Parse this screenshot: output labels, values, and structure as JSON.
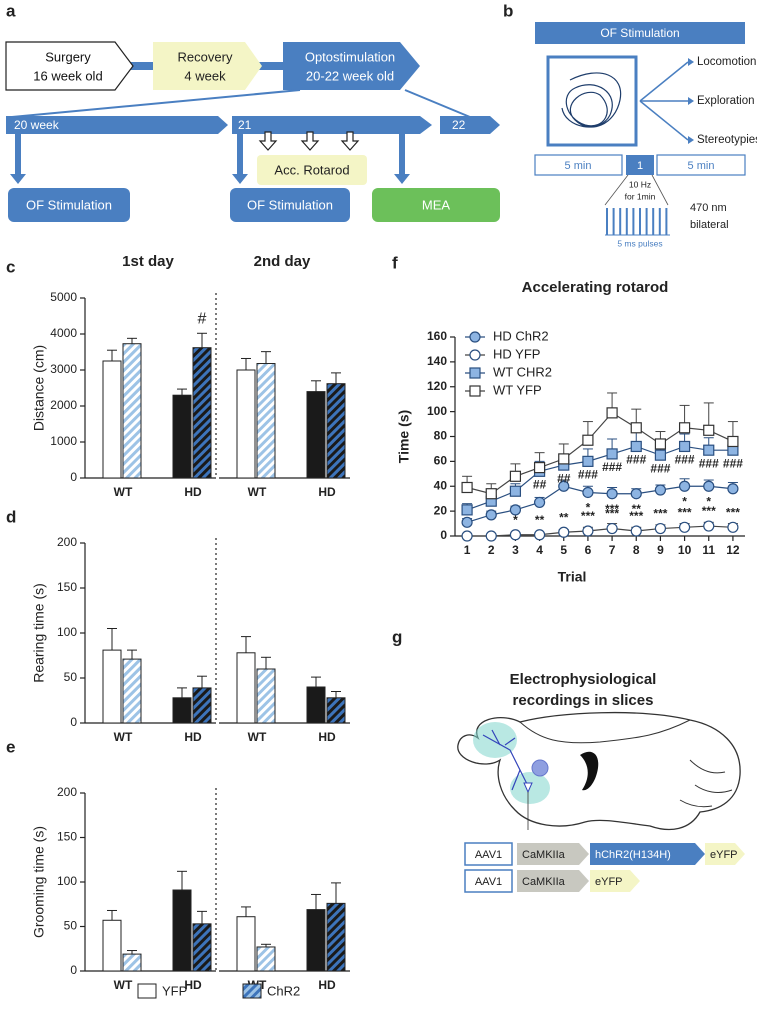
{
  "panel_labels": [
    "a",
    "b",
    "c",
    "d",
    "e",
    "f",
    "g"
  ],
  "timeline": {
    "steps": [
      [
        "Surgery",
        "16 week old"
      ],
      [
        "Recovery",
        "4 week"
      ],
      [
        "Optostimulation",
        "20-22 week old"
      ]
    ],
    "weeks": [
      "20 week",
      "21",
      "22"
    ],
    "events": [
      "OF Stimulation",
      "Acc. Rotarod",
      "OF Stimulation",
      "MEA"
    ]
  },
  "protocol": {
    "title": "OF Stimulation",
    "outcomes": [
      "Locomotion",
      "Exploration",
      "Stereotypies"
    ],
    "phases": [
      "5 min",
      "1",
      "5 min"
    ],
    "frequency": [
      "10 Hz",
      "for 1min"
    ],
    "pulses": "5 ms pulses",
    "light": [
      "470 nm",
      "bilateral"
    ]
  },
  "legend": [
    "YFP",
    "ChR2"
  ],
  "chart_data": [
    {
      "type": "bar",
      "ylabel": "Distance (cm)",
      "ylim": [
        0,
        5000
      ],
      "yticks": [
        0,
        1000,
        2000,
        3000,
        4000,
        5000
      ],
      "facets": [
        {
          "title": "1st day",
          "categories": [
            "WT",
            "HD"
          ],
          "series": [
            {
              "colors": [
                "#ffffff",
                "#1a1a1a"
              ],
              "values": [
                3250,
                2300
              ],
              "errors": [
                300,
                170
              ]
            },
            {
              "colors": [
                "#9dc3e6",
                "#3d74bb"
              ],
              "hatch_background": [
                "#ffffff",
                "#1a1a1a"
              ],
              "values": [
                3730,
                3620
              ],
              "errors": [
                150,
                400
              ],
              "annotations": [
                null,
                "#"
              ]
            }
          ]
        },
        {
          "title": "2nd day",
          "categories": [
            "WT",
            "HD"
          ],
          "series": [
            {
              "colors": [
                "#ffffff",
                "#1a1a1a"
              ],
              "values": [
                3000,
                2400
              ],
              "errors": [
                320,
                300
              ]
            },
            {
              "colors": [
                "#9dc3e6",
                "#3d74bb"
              ],
              "hatch_background": [
                "#ffffff",
                "#1a1a1a"
              ],
              "values": [
                3180,
                2620
              ],
              "errors": [
                330,
                300
              ]
            }
          ]
        }
      ]
    },
    {
      "type": "bar",
      "ylabel": "Rearing time (s)",
      "ylim": [
        0,
        200
      ],
      "yticks": [
        0,
        50,
        100,
        150,
        200
      ],
      "facets": [
        {
          "categories": [
            "WT",
            "HD"
          ],
          "series": [
            {
              "colors": [
                "#ffffff",
                "#1a1a1a"
              ],
              "values": [
                81,
                28
              ],
              "errors": [
                24,
                11
              ]
            },
            {
              "colors": [
                "#9dc3e6",
                "#3d74bb"
              ],
              "hatch_background": [
                "#ffffff",
                "#1a1a1a"
              ],
              "values": [
                71,
                39
              ],
              "errors": [
                10,
                13
              ]
            }
          ]
        },
        {
          "categories": [
            "WT",
            "HD"
          ],
          "series": [
            {
              "colors": [
                "#ffffff",
                "#1a1a1a"
              ],
              "values": [
                78,
                40
              ],
              "errors": [
                18,
                11
              ]
            },
            {
              "colors": [
                "#9dc3e6",
                "#3d74bb"
              ],
              "hatch_background": [
                "#ffffff",
                "#1a1a1a"
              ],
              "values": [
                60,
                28
              ],
              "errors": [
                13,
                7
              ]
            }
          ]
        }
      ]
    },
    {
      "type": "bar",
      "ylabel": "Grooming time (s)",
      "ylim": [
        0,
        200
      ],
      "yticks": [
        0,
        50,
        100,
        150,
        200
      ],
      "facets": [
        {
          "categories": [
            "WT",
            "HD"
          ],
          "series": [
            {
              "colors": [
                "#ffffff",
                "#1a1a1a"
              ],
              "values": [
                57,
                91
              ],
              "errors": [
                11,
                21
              ]
            },
            {
              "colors": [
                "#9dc3e6",
                "#3d74bb"
              ],
              "hatch_background": [
                "#ffffff",
                "#1a1a1a"
              ],
              "values": [
                19,
                53
              ],
              "errors": [
                4,
                14
              ]
            }
          ]
        },
        {
          "categories": [
            "WT",
            "HD"
          ],
          "series": [
            {
              "colors": [
                "#ffffff",
                "#1a1a1a"
              ],
              "values": [
                61,
                69
              ],
              "errors": [
                11,
                17
              ]
            },
            {
              "colors": [
                "#9dc3e6",
                "#3d74bb"
              ],
              "hatch_background": [
                "#ffffff",
                "#1a1a1a"
              ],
              "values": [
                27,
                76
              ],
              "errors": [
                3,
                23
              ]
            }
          ]
        }
      ]
    },
    {
      "type": "line",
      "title": "Accelerating rotarod",
      "xlabel": "Trial",
      "ylabel": "Time (s)",
      "x": [
        1,
        2,
        3,
        4,
        5,
        6,
        7,
        8,
        9,
        10,
        11,
        12
      ],
      "xlim": [
        0.5,
        12.5
      ],
      "xticks": [
        1,
        2,
        3,
        4,
        5,
        6,
        7,
        8,
        9,
        10,
        11,
        12
      ],
      "ylim": [
        0,
        160
      ],
      "yticks": [
        0,
        20,
        40,
        60,
        80,
        100,
        120,
        140,
        160
      ],
      "series": [
        {
          "name": "HD ChR2",
          "marker": "circle",
          "color": "#8db4e2",
          "values": [
            11,
            17,
            21,
            27,
            40,
            35,
            34,
            34,
            37,
            40,
            40,
            38
          ],
          "errors": [
            3,
            3,
            3,
            4,
            5,
            5,
            5,
            4,
            4,
            6,
            5,
            5
          ],
          "annotations": [
            null,
            null,
            null,
            null,
            null,
            "*",
            "***",
            "**",
            null,
            "*",
            "*",
            null
          ]
        },
        {
          "name": "HD YFP",
          "marker": "circle",
          "color": "#ffffff",
          "values": [
            0,
            0,
            1,
            1,
            3,
            4,
            6,
            4,
            6,
            7,
            8,
            7
          ],
          "errors": [
            1,
            1,
            1,
            1,
            2,
            3,
            4,
            3,
            3,
            3,
            3,
            3
          ],
          "annotations": [
            null,
            null,
            "*",
            "**",
            "**",
            "***",
            "***",
            "***",
            "***",
            "***",
            "***",
            "***"
          ]
        },
        {
          "name": "WT CHR2",
          "marker": "square",
          "color": "#8db4e2",
          "values": [
            21,
            28,
            36,
            52,
            57,
            60,
            66,
            72,
            65,
            72,
            69,
            69
          ],
          "errors": [
            5,
            5,
            6,
            8,
            8,
            10,
            12,
            12,
            8,
            10,
            10,
            8
          ],
          "annotations": [
            null,
            null,
            null,
            "##",
            "##",
            "###",
            "###",
            "###",
            "###",
            "###",
            "###",
            "###"
          ]
        },
        {
          "name": "WT YFP",
          "marker": "square",
          "color": "#ffffff",
          "values": [
            39,
            34,
            48,
            55,
            62,
            77,
            99,
            87,
            74,
            87,
            85,
            76
          ],
          "errors": [
            9,
            8,
            10,
            12,
            12,
            15,
            16,
            15,
            10,
            18,
            22,
            16
          ]
        }
      ]
    }
  ],
  "recordings": {
    "title": [
      "Electrophysiological",
      "recordings in slices"
    ],
    "constructs": [
      [
        "AAV1",
        "CaMKIIa",
        "hChR2(H134H)",
        "eYFP"
      ],
      [
        "AAV1",
        "CaMKIIa",
        "eYFP"
      ]
    ]
  }
}
